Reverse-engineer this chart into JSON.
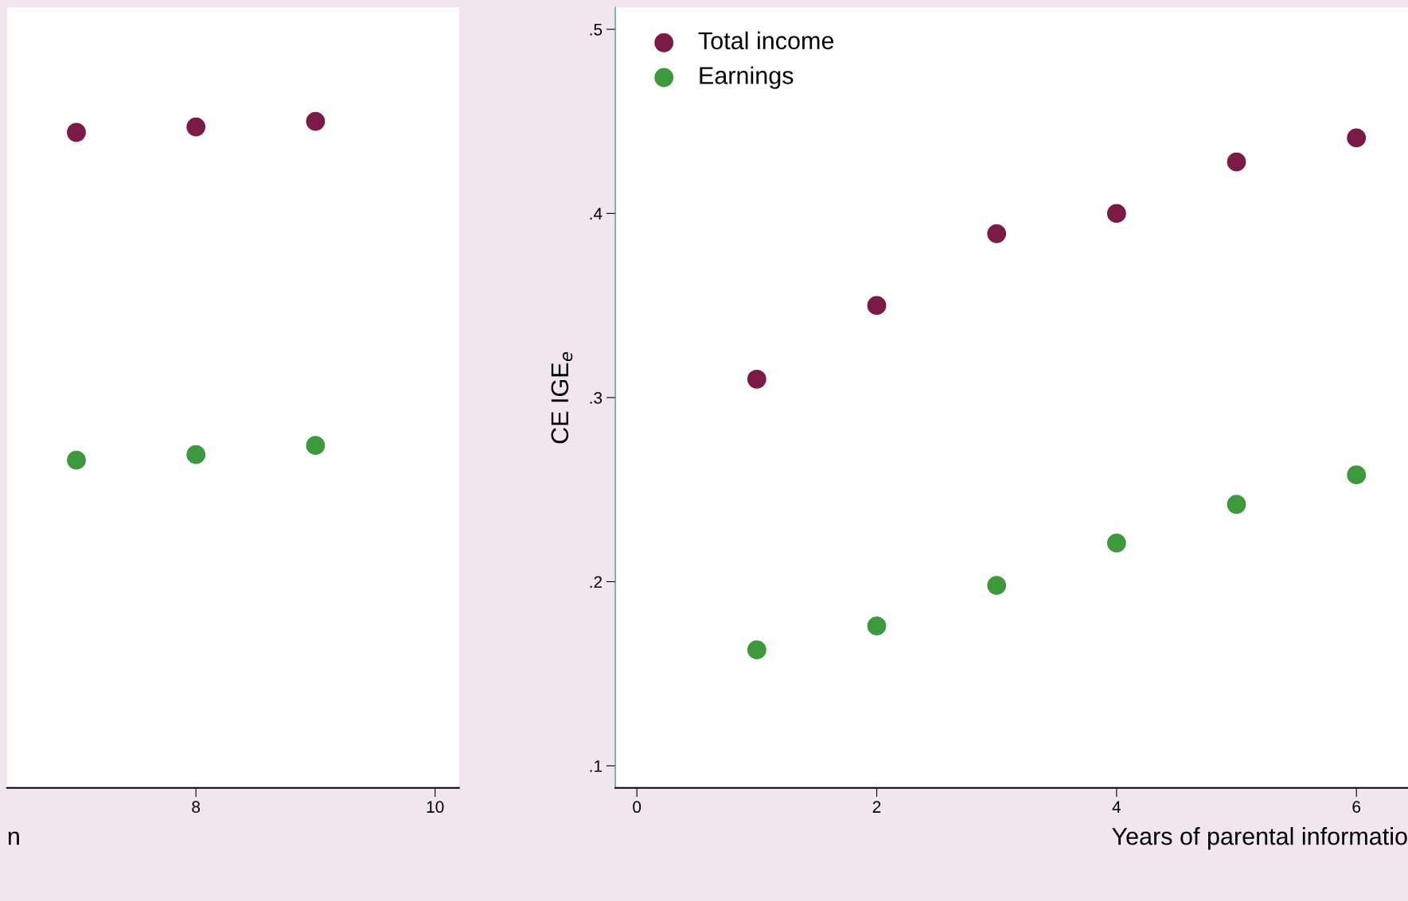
{
  "chart_data": [
    {
      "type": "scatter",
      "x": [
        7,
        8,
        9
      ],
      "xlim": [
        6.42,
        10.2
      ],
      "xticks": [
        8,
        10
      ],
      "ylim": [
        0.088,
        0.512
      ],
      "tick_labels": "x",
      "xlabel": "n",
      "marker": "circle",
      "legend": false,
      "series": [
        {
          "color": "#7b1a46",
          "values": [
            0.444,
            0.447,
            0.45
          ]
        },
        {
          "color": "#3c9a3c",
          "values": [
            0.266,
            0.269,
            0.274
          ]
        }
      ]
    },
    {
      "type": "scatter",
      "x": [
        1,
        2,
        3,
        4,
        5,
        6
      ],
      "xlim": [
        -0.18,
        6.43
      ],
      "xticks": [
        0,
        2,
        4,
        6
      ],
      "ylim": [
        0.088,
        0.512
      ],
      "yticks": [
        {
          "value": 0.1,
          "label": ".1"
        },
        {
          "value": 0.2,
          "label": ".2"
        },
        {
          "value": 0.3,
          "label": ".3"
        },
        {
          "value": 0.4,
          "label": ".4"
        },
        {
          "value": 0.5,
          "label": ".5"
        }
      ],
      "xlabel": "Years of parental informatio",
      "ylabel": "CE IGE$_{e}$",
      "marker": "circle",
      "legend": "top left",
      "series": [
        {
          "name": "Total income",
          "color": "#7b1a46",
          "values": [
            0.31,
            0.35,
            0.389,
            0.4,
            0.428,
            0.441
          ]
        },
        {
          "name": "Earnings",
          "color": "#3c9a3c",
          "values": [
            0.163,
            0.176,
            0.198,
            0.221,
            0.242,
            0.258
          ]
        }
      ]
    }
  ]
}
